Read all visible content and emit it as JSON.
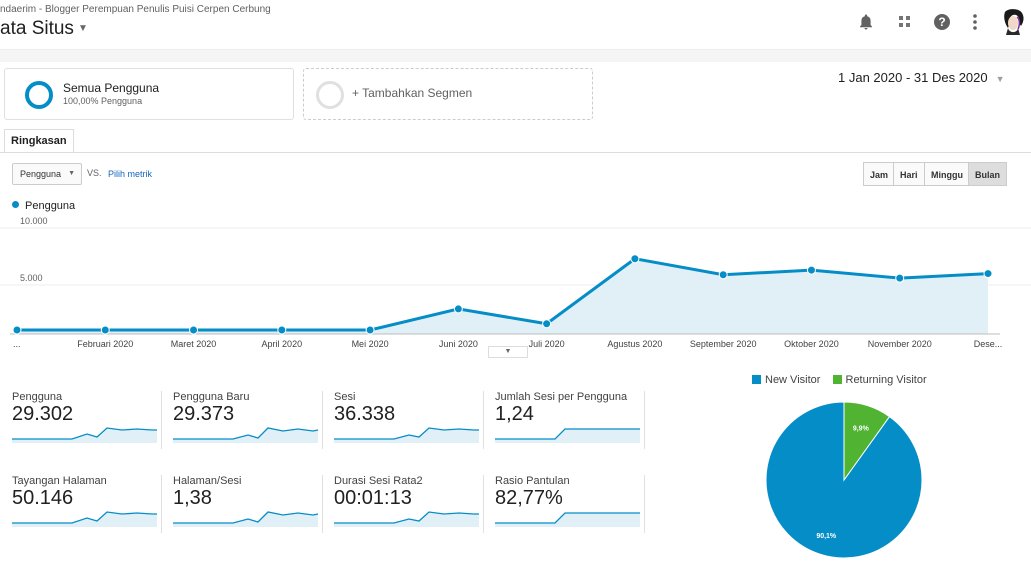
{
  "header": {
    "breadcrumb": "ndaerim - Blogger Perempuan Penulis Puisi Cerpen Cerbung",
    "title": "ata Situs"
  },
  "segments": {
    "primary_title": "Semua Pengguna",
    "primary_sub": "100,00% Pengguna",
    "add_label": "+ Tambahkan Segmen"
  },
  "date_range": "1 Jan 2020 - 31 Des 2020",
  "tabs": {
    "overview": "Ringkasan"
  },
  "controls": {
    "metric": "Pengguna",
    "vs": "VS.",
    "pick_metric": "Pilih metrik",
    "granularity": [
      "Jam",
      "Hari",
      "Minggu",
      "Bulan"
    ],
    "active_granularity": "Bulan"
  },
  "chart_data": {
    "type": "area",
    "series": [
      {
        "name": "Pengguna",
        "values": [
          350,
          350,
          350,
          350,
          350,
          2200,
          900,
          6600,
          5200,
          5600,
          4900,
          5300
        ]
      }
    ],
    "categories": [
      "...",
      "Februari 2020",
      "Maret 2020",
      "April 2020",
      "Mei 2020",
      "Juni 2020",
      "Juli 2020",
      "Agustus 2020",
      "September 2020",
      "Oktober 2020",
      "November 2020",
      "Dese..."
    ],
    "y_ticks": [
      "10.000",
      "5.000"
    ],
    "ylim": [
      0,
      10000
    ],
    "color": "#058dc7",
    "fill": "#e1f0f7"
  },
  "cards": [
    {
      "label": "Pengguna",
      "value": "29.302"
    },
    {
      "label": "Pengguna Baru",
      "value": "29.373"
    },
    {
      "label": "Sesi",
      "value": "36.338"
    },
    {
      "label": "Jumlah Sesi per Pengguna",
      "value": "1,24"
    },
    {
      "label": "Tayangan Halaman",
      "value": "50.146"
    },
    {
      "label": "Halaman/Sesi",
      "value": "1,38"
    },
    {
      "label": "Durasi Sesi Rata2",
      "value": "00:01:13"
    },
    {
      "label": "Rasio Pantulan",
      "value": "82,77%"
    }
  ],
  "pie": {
    "legend": [
      "New Visitor",
      "Returning Visitor"
    ],
    "values": [
      90.1,
      9.9
    ],
    "labels": [
      "90,1%",
      "9,9%"
    ],
    "colors": [
      "#058dc7",
      "#50b432"
    ]
  }
}
